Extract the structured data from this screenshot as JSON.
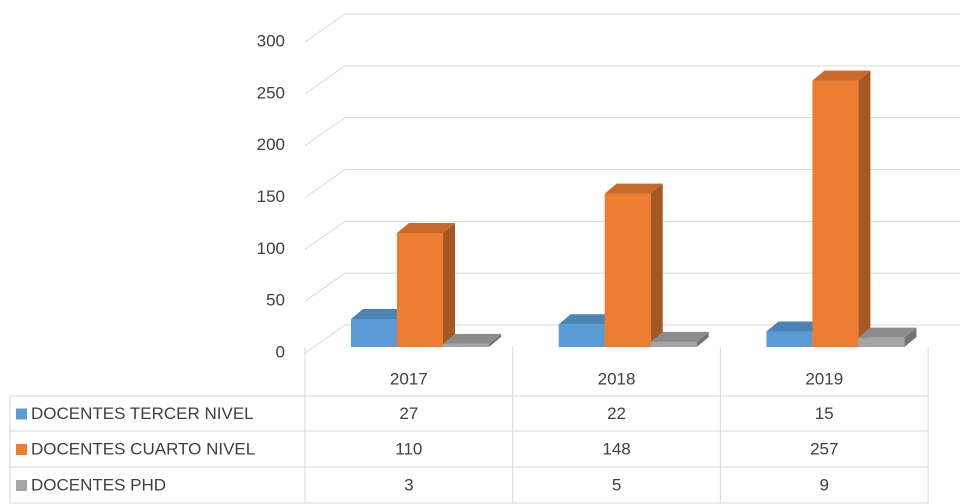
{
  "chart_data": {
    "type": "bar3d",
    "categories": [
      "2017",
      "2018",
      "2019"
    ],
    "series": [
      {
        "name": "DOCENTES TERCER NIVEL",
        "color": "#5b9bd5",
        "values": [
          27,
          22,
          15
        ]
      },
      {
        "name": "DOCENTES CUARTO NIVEL",
        "color": "#ed7d31",
        "values": [
          110,
          148,
          257
        ]
      },
      {
        "name": "DOCENTES PHD",
        "color": "#a5a5a5",
        "values": [
          3,
          5,
          9
        ]
      }
    ],
    "ylim": [
      0,
      300
    ],
    "yticks": [
      0,
      50,
      100,
      150,
      200,
      250,
      300
    ],
    "grid": true,
    "data_table": true
  }
}
